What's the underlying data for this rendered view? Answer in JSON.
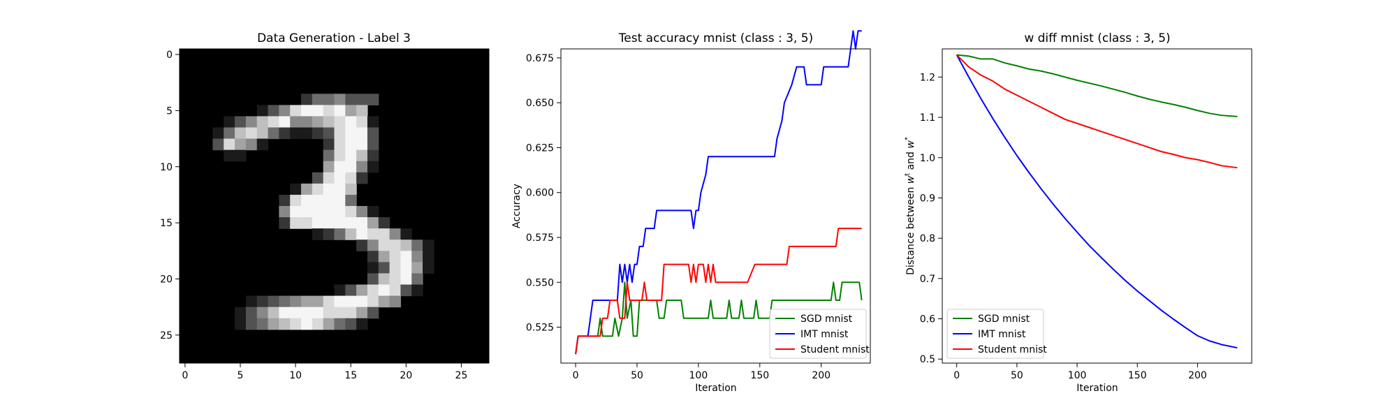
{
  "chart_data": [
    {
      "type": "heatmap",
      "title": "Data Generation - Label 3",
      "colormap": "gray",
      "xlim": [
        -0.5,
        27.5
      ],
      "ylim": [
        27.5,
        -0.5
      ],
      "xticks": [
        0,
        5,
        10,
        15,
        20,
        25
      ],
      "yticks": [
        0,
        5,
        10,
        15,
        20,
        25
      ],
      "rows": [
        "0000000000000000000000000000",
        "0000000000000000000000000000",
        "0000000000000000000000000000",
        "0000000000000000000000000000",
        "0000000000024453330000000000",
        "0000000135899896700000000000",
        "0000135789556789810000000000",
        "0001478742112389930000000000",
        "0003865100000289930000000000",
        "0000110000000489720000000000",
        "0000000000000699510000000000",
        "0000000000003898200000000000",
        "0000000000168997000000000000",
        "0000000002899994000000000000",
        "0000000005999998510000000000",
        "0000000002889999962000000000",
        "0000000000001247988510000000",
        "0000000000000000258874100000",
        "0000000000000000026895100000",
        "0000000000000000013896100000",
        "0000000000000000037894000000",
        "0000000000000013689831000000",
        "0000001234566899986500000000",
        "0000013579999888630000000000",
        "0000013467898643100000000000",
        "0000000000000000000000000000",
        "0000000000000000000000000000",
        "0000000000000000000000000000"
      ]
    },
    {
      "type": "line",
      "title": "Test accuracy mnist (class : 3, 5)",
      "xlabel": "Iteration",
      "ylabel": "Accuracy",
      "xlim": [
        -12,
        240
      ],
      "ylim": [
        0.505,
        0.68
      ],
      "xticks": [
        0,
        50,
        100,
        150,
        200
      ],
      "yticks": [
        0.525,
        0.55,
        0.575,
        0.6,
        0.625,
        0.65,
        0.675
      ],
      "legend_loc": "lower right",
      "series": [
        {
          "name": "SGD mnist",
          "color": "#008000",
          "points": [
            [
              0,
              0.51
            ],
            [
              2,
              0.52
            ],
            [
              18,
              0.52
            ],
            [
              20,
              0.53
            ],
            [
              22,
              0.52
            ],
            [
              30,
              0.52
            ],
            [
              32,
              0.53
            ],
            [
              35,
              0.52
            ],
            [
              38,
              0.53
            ],
            [
              40,
              0.55
            ],
            [
              42,
              0.53
            ],
            [
              45,
              0.54
            ],
            [
              47,
              0.52
            ],
            [
              50,
              0.52
            ],
            [
              52,
              0.54
            ],
            [
              66,
              0.54
            ],
            [
              68,
              0.53
            ],
            [
              72,
              0.53
            ],
            [
              74,
              0.54
            ],
            [
              86,
              0.54
            ],
            [
              88,
              0.53
            ],
            [
              108,
              0.53
            ],
            [
              110,
              0.54
            ],
            [
              112,
              0.53
            ],
            [
              123,
              0.53
            ],
            [
              125,
              0.54
            ],
            [
              127,
              0.53
            ],
            [
              133,
              0.53
            ],
            [
              135,
              0.54
            ],
            [
              137,
              0.53
            ],
            [
              145,
              0.53
            ],
            [
              147,
              0.54
            ],
            [
              149,
              0.53
            ],
            [
              158,
              0.53
            ],
            [
              160,
              0.54
            ],
            [
              208,
              0.54
            ],
            [
              210,
              0.55
            ],
            [
              212,
              0.54
            ],
            [
              215,
              0.54
            ],
            [
              217,
              0.55
            ],
            [
              231,
              0.55
            ],
            [
              233,
              0.54
            ]
          ]
        },
        {
          "name": "IMT mnist",
          "color": "#0000ff",
          "points": [
            [
              0,
              0.51
            ],
            [
              2,
              0.52
            ],
            [
              10,
              0.52
            ],
            [
              12,
              0.53
            ],
            [
              14,
              0.54
            ],
            [
              34,
              0.54
            ],
            [
              36,
              0.56
            ],
            [
              38,
              0.55
            ],
            [
              40,
              0.56
            ],
            [
              42,
              0.55
            ],
            [
              44,
              0.56
            ],
            [
              46,
              0.55
            ],
            [
              48,
              0.56
            ],
            [
              50,
              0.56
            ],
            [
              52,
              0.57
            ],
            [
              55,
              0.57
            ],
            [
              57,
              0.58
            ],
            [
              64,
              0.58
            ],
            [
              66,
              0.59
            ],
            [
              94,
              0.59
            ],
            [
              96,
              0.58
            ],
            [
              98,
              0.59
            ],
            [
              100,
              0.59
            ],
            [
              102,
              0.6
            ],
            [
              106,
              0.61
            ],
            [
              108,
              0.62
            ],
            [
              162,
              0.62
            ],
            [
              164,
              0.63
            ],
            [
              168,
              0.64
            ],
            [
              170,
              0.65
            ],
            [
              176,
              0.66
            ],
            [
              180,
              0.67
            ],
            [
              186,
              0.67
            ],
            [
              188,
              0.66
            ],
            [
              200,
              0.66
            ],
            [
              202,
              0.67
            ],
            [
              222,
              0.67
            ],
            [
              224,
              0.68
            ],
            [
              226,
              0.69
            ],
            [
              228,
              0.68
            ],
            [
              230,
              0.69
            ],
            [
              233,
              0.69
            ]
          ]
        },
        {
          "name": "Student mnist",
          "color": "#ff0000",
          "points": [
            [
              0,
              0.51
            ],
            [
              2,
              0.52
            ],
            [
              20,
              0.52
            ],
            [
              22,
              0.53
            ],
            [
              26,
              0.53
            ],
            [
              28,
              0.54
            ],
            [
              34,
              0.54
            ],
            [
              36,
              0.53
            ],
            [
              40,
              0.53
            ],
            [
              42,
              0.55
            ],
            [
              44,
              0.54
            ],
            [
              54,
              0.54
            ],
            [
              56,
              0.55
            ],
            [
              58,
              0.54
            ],
            [
              70,
              0.54
            ],
            [
              72,
              0.56
            ],
            [
              92,
              0.56
            ],
            [
              94,
              0.55
            ],
            [
              96,
              0.56
            ],
            [
              98,
              0.55
            ],
            [
              100,
              0.56
            ],
            [
              104,
              0.56
            ],
            [
              106,
              0.55
            ],
            [
              108,
              0.56
            ],
            [
              110,
              0.55
            ],
            [
              112,
              0.56
            ],
            [
              114,
              0.55
            ],
            [
              140,
              0.55
            ],
            [
              146,
              0.56
            ],
            [
              172,
              0.56
            ],
            [
              174,
              0.57
            ],
            [
              212,
              0.57
            ],
            [
              214,
              0.58
            ],
            [
              233,
              0.58
            ]
          ]
        }
      ]
    },
    {
      "type": "line",
      "title": "w diff mnist (class : 3, 5)",
      "xlabel": "Iteration",
      "ylabel": "Distance between w^t and w^*",
      "xlim": [
        -12,
        245
      ],
      "ylim": [
        0.49,
        1.27
      ],
      "xticks": [
        0,
        50,
        100,
        150,
        200
      ],
      "yticks": [
        0.5,
        0.6,
        0.7,
        0.8,
        0.9,
        1.0,
        1.1,
        1.2
      ],
      "legend_loc": "lower left",
      "series": [
        {
          "name": "SGD mnist",
          "color": "#008000",
          "points": [
            [
              0,
              1.255
            ],
            [
              10,
              1.252
            ],
            [
              20,
              1.245
            ],
            [
              30,
              1.245
            ],
            [
              40,
              1.235
            ],
            [
              50,
              1.228
            ],
            [
              60,
              1.22
            ],
            [
              70,
              1.215
            ],
            [
              80,
              1.208
            ],
            [
              90,
              1.2
            ],
            [
              100,
              1.192
            ],
            [
              110,
              1.185
            ],
            [
              120,
              1.178
            ],
            [
              130,
              1.17
            ],
            [
              140,
              1.162
            ],
            [
              150,
              1.153
            ],
            [
              160,
              1.145
            ],
            [
              170,
              1.138
            ],
            [
              180,
              1.132
            ],
            [
              190,
              1.125
            ],
            [
              200,
              1.117
            ],
            [
              210,
              1.11
            ],
            [
              220,
              1.105
            ],
            [
              233,
              1.102
            ]
          ]
        },
        {
          "name": "IMT mnist",
          "color": "#0000ff",
          "points": [
            [
              0,
              1.255
            ],
            [
              10,
              1.2
            ],
            [
              20,
              1.147
            ],
            [
              30,
              1.097
            ],
            [
              40,
              1.05
            ],
            [
              50,
              1.005
            ],
            [
              60,
              0.963
            ],
            [
              70,
              0.923
            ],
            [
              80,
              0.885
            ],
            [
              90,
              0.849
            ],
            [
              100,
              0.815
            ],
            [
              110,
              0.782
            ],
            [
              120,
              0.752
            ],
            [
              130,
              0.723
            ],
            [
              140,
              0.695
            ],
            [
              150,
              0.669
            ],
            [
              160,
              0.645
            ],
            [
              170,
              0.621
            ],
            [
              180,
              0.599
            ],
            [
              190,
              0.578
            ],
            [
              200,
              0.558
            ],
            [
              210,
              0.545
            ],
            [
              220,
              0.536
            ],
            [
              233,
              0.528
            ]
          ]
        },
        {
          "name": "Student mnist",
          "color": "#ff0000",
          "points": [
            [
              0,
              1.255
            ],
            [
              10,
              1.225
            ],
            [
              20,
              1.205
            ],
            [
              30,
              1.19
            ],
            [
              40,
              1.17
            ],
            [
              50,
              1.155
            ],
            [
              60,
              1.14
            ],
            [
              70,
              1.125
            ],
            [
              80,
              1.11
            ],
            [
              90,
              1.095
            ],
            [
              100,
              1.085
            ],
            [
              110,
              1.075
            ],
            [
              120,
              1.065
            ],
            [
              130,
              1.055
            ],
            [
              140,
              1.045
            ],
            [
              150,
              1.035
            ],
            [
              160,
              1.025
            ],
            [
              170,
              1.015
            ],
            [
              180,
              1.008
            ],
            [
              190,
              1.0
            ],
            [
              200,
              0.995
            ],
            [
              210,
              0.988
            ],
            [
              220,
              0.98
            ],
            [
              233,
              0.975
            ]
          ]
        }
      ]
    }
  ]
}
